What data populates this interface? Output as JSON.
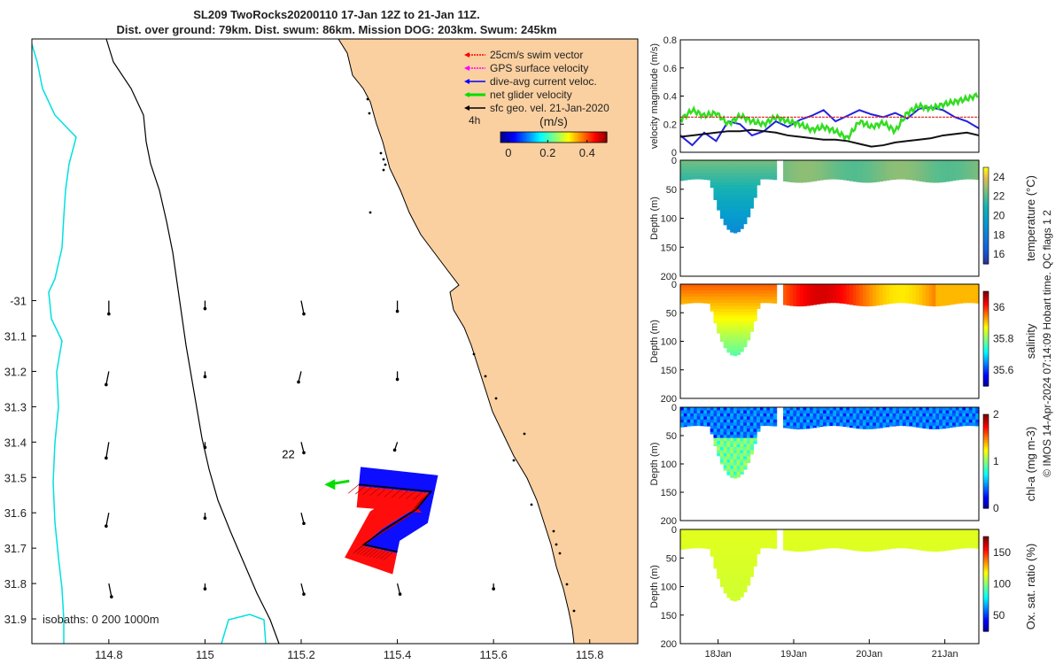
{
  "title": {
    "line1": "SL209 TwoRocks20200110 17-Jan 12Z to 21-Jan 11Z.",
    "line2": "Dist. over ground: 79km. Dist. swum: 86km. Mission DOG: 203km. Swum: 245km"
  },
  "colors": {
    "land": "#fbd0a0",
    "swim": "#ff0000",
    "gps": "#ff00ff",
    "dive_avg": "#0000ff",
    "net": "#00dd00",
    "geo": "#000000",
    "isobath_shallow": "#00e0e0",
    "dac_line": "#2222dd",
    "net_line": "#33dd22",
    "geo_line": "#111111",
    "swim_line": "#dd2222"
  },
  "chart_data": [
    {
      "type": "scatter",
      "title": "Map of glider track",
      "xlabel": "",
      "ylabel": "",
      "xlim": [
        114.64,
        115.9
      ],
      "ylim": [
        -31.97,
        -30.26
      ],
      "x_ticks": [
        "114.8",
        "115",
        "115.2",
        "115.4",
        "115.6",
        "115.8"
      ],
      "y_ticks": [
        "-31",
        "31.1",
        "31.2",
        "31.3",
        "31.4",
        "31.5",
        "31.6",
        "31.7",
        "31.8",
        "31.9"
      ],
      "y_tick_values": [
        -31.0,
        -31.1,
        -31.2,
        -31.3,
        -31.4,
        -31.5,
        -31.6,
        -31.7,
        -31.8,
        -31.9
      ],
      "track_label": "22",
      "time_label": "4h",
      "isobaths_label": "isobaths: 0   200  1000m",
      "legend": [
        {
          "label": "25cm/s swim vector",
          "color_key": "swim"
        },
        {
          "label": "GPS surface velocity",
          "color_key": "gps"
        },
        {
          "label": "dive-avg current veloc.",
          "color_key": "dive_avg"
        },
        {
          "label": "net glider velocity",
          "color_key": "net"
        },
        {
          "label": "sfc geo. vel. 21-Jan-2020",
          "color_key": "geo"
        }
      ],
      "colorbar": {
        "label": "(m/s)",
        "ticks": [
          "0",
          "0.2",
          "0.4"
        ],
        "range": [
          -0.04,
          0.5
        ]
      },
      "track": [
        [
          115.32,
          -31.52
        ],
        [
          115.47,
          -31.54
        ],
        [
          115.44,
          -31.59
        ],
        [
          115.37,
          -31.65
        ],
        [
          115.33,
          -31.69
        ],
        [
          115.4,
          -31.71
        ]
      ],
      "geo_vectors": [
        [
          114.8,
          -31.0,
          0.0,
          -0.05
        ],
        [
          115.0,
          -31.0,
          0.0,
          -0.03
        ],
        [
          115.2,
          -31.0,
          0.01,
          -0.05
        ],
        [
          115.4,
          -31.0,
          0.0,
          -0.04
        ],
        [
          114.8,
          -31.2,
          -0.01,
          -0.05
        ],
        [
          115.0,
          -31.2,
          0.0,
          -0.02
        ],
        [
          115.2,
          -31.2,
          -0.01,
          -0.04
        ],
        [
          115.4,
          -31.2,
          0.0,
          -0.03
        ],
        [
          114.8,
          -31.4,
          -0.01,
          -0.06
        ],
        [
          115.0,
          -31.4,
          0.0,
          -0.02
        ],
        [
          115.2,
          -31.4,
          0.01,
          -0.04
        ],
        [
          115.4,
          -31.4,
          -0.01,
          -0.03
        ],
        [
          114.8,
          -31.6,
          -0.01,
          -0.05
        ],
        [
          115.0,
          -31.6,
          0.0,
          -0.02
        ],
        [
          115.2,
          -31.6,
          0.01,
          -0.04
        ],
        [
          114.8,
          -31.8,
          0.01,
          -0.05
        ],
        [
          115.0,
          -31.8,
          0.0,
          -0.02
        ],
        [
          115.2,
          -31.8,
          0.01,
          -0.04
        ],
        [
          115.4,
          -31.8,
          0.01,
          -0.04
        ],
        [
          115.6,
          -31.8,
          0.0,
          -0.02
        ]
      ],
      "swim_arrow": {
        "x": 115.3,
        "y": -31.51,
        "u": -0.06,
        "v": -0.01
      }
    },
    {
      "type": "line",
      "title": "",
      "ylabel": "velocity magnitude (m/s)",
      "xlabel": "",
      "ylim": [
        0,
        0.8
      ],
      "y_ticks": [
        "0",
        "0.2",
        "0.4",
        "0.6",
        "0.8"
      ],
      "x": [
        0,
        0.4,
        0.8,
        1.2,
        1.6,
        2.0,
        2.4,
        2.8,
        3.2,
        3.6,
        4.0,
        4.4,
        4.8,
        5.2,
        5.6,
        6.0,
        6.4,
        6.8,
        7.2,
        7.6,
        8.0,
        8.4,
        8.8,
        9.2,
        9.6,
        10.0
      ],
      "series": [
        {
          "name": "dive-avg current veloc.",
          "color_key": "dac_line",
          "values": [
            0.12,
            0.05,
            0.14,
            0.08,
            0.22,
            0.2,
            0.12,
            0.15,
            0.22,
            0.18,
            0.23,
            0.26,
            0.3,
            0.22,
            0.26,
            0.3,
            0.27,
            0.25,
            0.28,
            0.24,
            0.31,
            0.32,
            0.3,
            0.25,
            0.22,
            0.17
          ]
        },
        {
          "name": "net glider velocity",
          "color_key": "net_line",
          "values": [
            0.23,
            0.3,
            0.26,
            0.28,
            0.2,
            0.26,
            0.22,
            0.2,
            0.25,
            0.22,
            0.2,
            0.16,
            0.18,
            0.15,
            0.1,
            0.22,
            0.18,
            0.21,
            0.15,
            0.28,
            0.33,
            0.31,
            0.34,
            0.36,
            0.38,
            0.41
          ]
        },
        {
          "name": "sfc geo. vel.",
          "color_key": "geo_line",
          "values": [
            0.11,
            0.12,
            0.13,
            0.14,
            0.15,
            0.15,
            0.16,
            0.15,
            0.14,
            0.12,
            0.11,
            0.1,
            0.09,
            0.09,
            0.08,
            0.06,
            0.04,
            0.05,
            0.07,
            0.08,
            0.09,
            0.1,
            0.12,
            0.13,
            0.14,
            0.12
          ]
        },
        {
          "name": "swim speed",
          "color_key": "swim_line",
          "values": [
            0.25,
            0.25,
            0.25,
            0.25,
            0.25,
            0.25,
            0.25,
            0.25,
            0.25,
            0.25,
            0.25,
            0.25,
            0.25,
            0.25,
            0.25,
            0.25,
            0.25,
            0.25,
            0.25,
            0.25,
            0.25,
            0.25,
            0.25,
            0.25,
            0.25,
            0.25
          ]
        }
      ]
    },
    {
      "type": "heatmap",
      "ylabel": "Depth (m)",
      "colorbar_label": "temperature (°C)",
      "colorbar_ticks": [
        "16",
        "18",
        "20",
        "22",
        "24"
      ],
      "y_ticks": [
        "0",
        "50",
        "100",
        "150",
        "200"
      ],
      "ylim": [
        200,
        0
      ],
      "crange": [
        15,
        25
      ],
      "surface_value": 22.5,
      "deep_value": 18.5,
      "colormap": "parula"
    },
    {
      "type": "heatmap",
      "ylabel": "Depth (m)",
      "colorbar_label": "salinity",
      "colorbar_ticks": [
        "35.6",
        "35.8",
        "36"
      ],
      "y_ticks": [
        "0",
        "50",
        "100",
        "150",
        "200"
      ],
      "ylim": [
        200,
        0
      ],
      "crange": [
        35.5,
        36.1
      ],
      "surface_value": 35.97,
      "deep_value": 35.77,
      "colormap": "jet"
    },
    {
      "type": "heatmap",
      "ylabel": "Depth (m)",
      "colorbar_label": "chl-a (mg m-3)",
      "colorbar_ticks": [
        "0",
        "1",
        "2"
      ],
      "y_ticks": [
        "0",
        "50",
        "100",
        "150",
        "200"
      ],
      "ylim": [
        200,
        0
      ],
      "crange": [
        0,
        2
      ],
      "surface_value": 0.25,
      "deep_value": 0.8,
      "colormap": "jet"
    },
    {
      "type": "heatmap",
      "ylabel": "Depth (m)",
      "colorbar_label": "Ox. sat. ratio (%)",
      "colorbar_ticks": [
        "50",
        "100",
        "150"
      ],
      "y_ticks": [
        "0",
        "50",
        "100",
        "150",
        "200"
      ],
      "ylim": [
        200,
        0
      ],
      "crange": [
        25,
        175
      ],
      "surface_value": 115,
      "deep_value": 112,
      "colormap": "jet"
    }
  ],
  "time_axis": {
    "labels": [
      "18Jan",
      "19Jan",
      "20Jan",
      "21Jan"
    ],
    "range_days": [
      17.5,
      21.45
    ],
    "label_days": [
      18,
      19,
      20,
      21
    ]
  },
  "section": {
    "gap_days": [
      18.8,
      18.82
    ],
    "dip_start": 17.9,
    "dip_end": 18.55,
    "dip_bottom_day": 18.22,
    "dip_depth": 125,
    "mixed_depth": 35
  },
  "footer": "© IMOS 14-Apr-2024 07:14:09 Hobart time. QC flags 1  2"
}
